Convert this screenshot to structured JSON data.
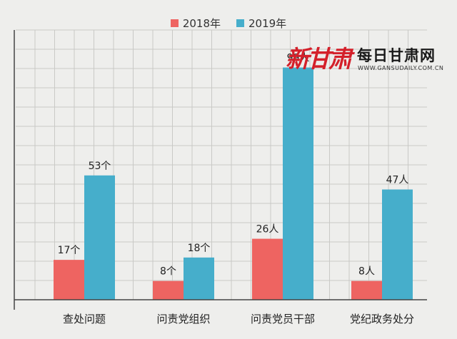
{
  "chart_data": {
    "type": "bar",
    "categories": [
      "查处问题",
      "问责党组织",
      "问责党员干部",
      "党纪政务处分"
    ],
    "series": [
      {
        "name": "2018年",
        "color": "#ee6461",
        "values": [
          17,
          8,
          26,
          8
        ],
        "labels": [
          "17个",
          "8个",
          "26人",
          "8人"
        ]
      },
      {
        "name": "2019年",
        "color": "#46aecb",
        "values": [
          53,
          18,
          99,
          47
        ],
        "labels": [
          "53个",
          "18个",
          "99人",
          "47人"
        ]
      }
    ],
    "ylim": [
      0,
      115
    ],
    "grid": true,
    "legend_position": "top-center"
  },
  "logo": {
    "brush_text": "新甘肃",
    "main_text": "每日甘肃网",
    "url_text": "WWW.GANSUDAILY.COM.CN"
  }
}
